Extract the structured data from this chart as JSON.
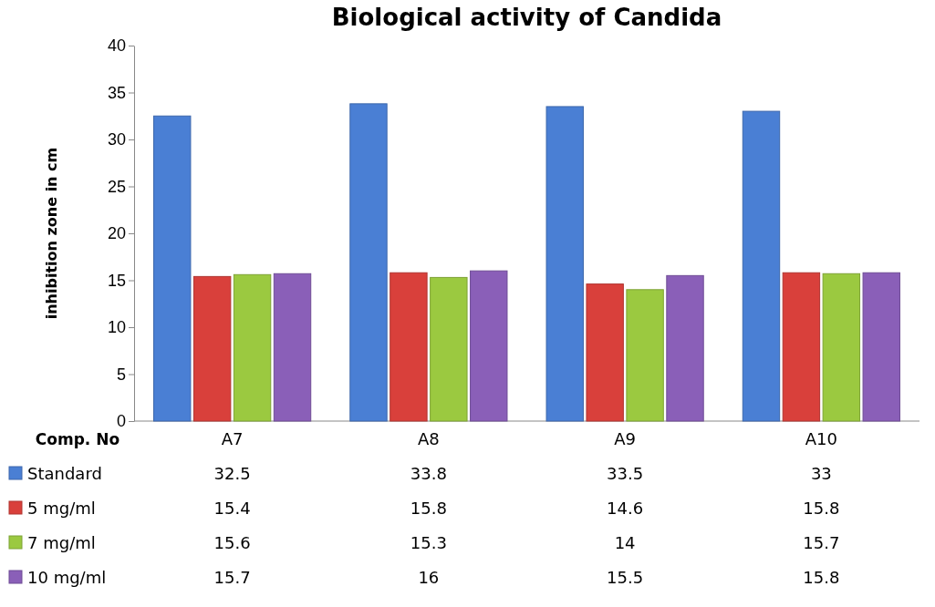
{
  "chart_data": {
    "type": "bar",
    "title": "Biological activity of Candida",
    "ylabel": "inhibition zone in cm",
    "xlabel": "Comp. No",
    "categories": [
      "A7",
      "A8",
      "A9",
      "A10"
    ],
    "series": [
      {
        "name": "Standard",
        "color": "#4a7fd4",
        "values": [
          32.5,
          33.8,
          33.5,
          33
        ]
      },
      {
        "name": "5 mg/ml",
        "color": "#d9403b",
        "values": [
          15.4,
          15.8,
          14.6,
          15.8
        ]
      },
      {
        "name": "7 mg/ml",
        "color": "#9bc940",
        "values": [
          15.6,
          15.3,
          14,
          15.7
        ]
      },
      {
        "name": "10 mg/ml",
        "color": "#8a5fb8",
        "values": [
          15.7,
          16,
          15.5,
          15.8
        ]
      }
    ],
    "ylim": [
      0,
      40
    ],
    "yticks": [
      0,
      5,
      10,
      15,
      20,
      25,
      30,
      35,
      40
    ],
    "grid": false,
    "legend": "bottom",
    "data_labels": true
  }
}
